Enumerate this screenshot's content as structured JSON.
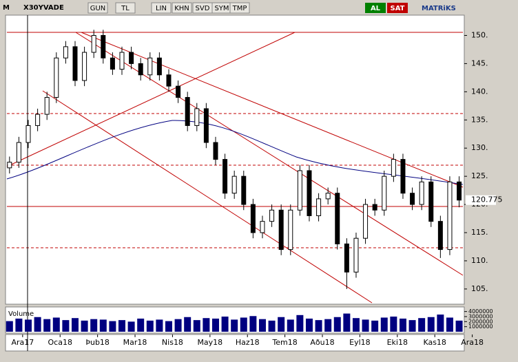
{
  "toolbar": {
    "logo": "M",
    "symbol": "X30YVADE",
    "buttons": [
      "GUN",
      "TL",
      "LIN",
      "KHN",
      "SVD",
      "SYM",
      "TMP"
    ],
    "buy": "AL",
    "sell": "SAT",
    "brand": "MATRiKS"
  },
  "chart_data": {
    "type": "candlestick",
    "x": [
      -0.35,
      -0.1,
      0.15,
      0.4,
      0.65,
      0.9,
      1.15,
      1.4,
      1.65,
      1.9,
      2.15,
      2.4,
      2.65,
      2.9,
      3.15,
      3.4,
      3.65,
      3.9,
      4.15,
      4.4,
      4.65,
      4.9,
      5.15,
      5.4,
      5.65,
      5.9,
      6.15,
      6.4,
      6.65,
      6.9,
      7.15,
      7.4,
      7.65,
      7.9,
      8.15,
      8.4,
      8.65,
      8.9,
      9.15,
      9.4,
      9.65,
      9.9,
      10.15,
      10.4,
      10.65,
      10.9,
      11.15,
      11.4,
      11.65
    ],
    "open": [
      126.5,
      127.5,
      131,
      134,
      136,
      139,
      146,
      148,
      142,
      147,
      150,
      146,
      144,
      147,
      145,
      143,
      146,
      143,
      141,
      139,
      134,
      137,
      131,
      128,
      122,
      125,
      120,
      115,
      117,
      119,
      112,
      119,
      126,
      118,
      121,
      122,
      113,
      108,
      114,
      120,
      119,
      125,
      128,
      122,
      120,
      124,
      117,
      112,
      124
    ],
    "high": [
      128.5,
      132,
      135,
      137,
      140,
      147,
      149,
      149,
      148,
      151,
      151,
      147,
      148,
      148,
      146,
      147,
      147,
      144,
      142,
      140,
      138,
      138,
      132,
      129,
      126,
      126,
      121,
      118,
      120,
      120,
      120,
      127,
      127,
      122,
      123,
      123,
      114,
      115,
      121,
      121,
      126,
      129,
      129,
      123,
      125,
      125,
      118,
      125,
      125
    ],
    "low": [
      125.5,
      126.5,
      130,
      133,
      135,
      138,
      145,
      141,
      141,
      146,
      145,
      143,
      143,
      144,
      142,
      142,
      142,
      140,
      138,
      133,
      133,
      130,
      127,
      121,
      121,
      119,
      114,
      114,
      116,
      111,
      111,
      118,
      117,
      117,
      120,
      112,
      105,
      107,
      113,
      118,
      118,
      124,
      121,
      119,
      119,
      116,
      110.5,
      111,
      119.5
    ],
    "close": [
      127.5,
      131,
      134,
      136,
      139,
      146,
      148,
      142,
      147,
      150,
      146,
      144,
      147,
      145,
      143,
      146,
      143,
      141,
      139,
      134,
      137,
      131,
      128,
      122,
      125,
      120,
      115,
      117,
      119,
      112,
      119,
      126,
      118,
      121,
      122,
      113,
      108,
      114,
      120,
      119,
      125,
      128,
      122,
      120,
      124,
      117,
      112,
      124,
      120.775
    ],
    "volume": [
      2100000,
      2600000,
      2400000,
      2900000,
      2500000,
      2800000,
      2300000,
      2700000,
      2200000,
      2500000,
      2400000,
      2100000,
      2300000,
      2000000,
      2600000,
      2200000,
      2400000,
      2100000,
      2500000,
      2900000,
      2300000,
      2700000,
      2600000,
      3000000,
      2400000,
      2800000,
      3100000,
      2500000,
      2200000,
      2900000,
      2400000,
      3300000,
      2600000,
      2300000,
      2500000,
      2900000,
      3600000,
      2700000,
      2400000,
      2200000,
      2800000,
      3000000,
      2600000,
      2300000,
      2700000,
      2900000,
      3400000,
      2800000,
      2200000
    ],
    "xticks": [
      {
        "value": 0,
        "label": "Ara17"
      },
      {
        "value": 1,
        "label": "Oca18"
      },
      {
        "value": 2,
        "label": "Þub18"
      },
      {
        "value": 3,
        "label": "Mar18"
      },
      {
        "value": 4,
        "label": "Nis18"
      },
      {
        "value": 5,
        "label": "May18"
      },
      {
        "value": 6,
        "label": "Haz18"
      },
      {
        "value": 7,
        "label": "Tem18"
      },
      {
        "value": 8,
        "label": "Aðu18"
      },
      {
        "value": 9,
        "label": "Eyl18"
      },
      {
        "value": 10,
        "label": "Eki18"
      },
      {
        "value": 11,
        "label": "Kas18"
      },
      {
        "value": 12,
        "label": "Ara18"
      }
    ],
    "xlim": [
      -0.42,
      11.75
    ],
    "ylim": [
      102.3,
      153.6
    ],
    "yticks": [
      {
        "value": 105,
        "label": "105."
      },
      {
        "value": 110,
        "label": "110."
      },
      {
        "value": 115,
        "label": "115."
      },
      {
        "value": 120,
        "label": "120."
      },
      {
        "value": 125,
        "label": "125."
      },
      {
        "value": 130,
        "label": "130."
      },
      {
        "value": 135,
        "label": "135."
      },
      {
        "value": 140,
        "label": "140."
      },
      {
        "value": 145,
        "label": "145."
      },
      {
        "value": 150,
        "label": "150."
      }
    ],
    "volume_label": "Volume",
    "volume_lim": [
      0,
      4500000
    ],
    "volume_ticks": [
      1000000,
      2000000,
      3000000,
      4000000
    ],
    "up_color": "#ffffff",
    "down_color": "#000000",
    "volume_color": "#000080"
  }
}
